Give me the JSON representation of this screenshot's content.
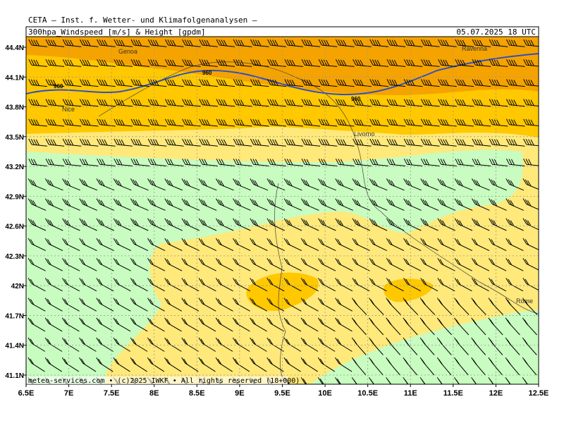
{
  "header": {
    "title": "CETA – Inst. f. Wetter- und Klimafolgenanalysen –",
    "subtitle": "300hpa_Windspeed [m/s] & Height [gpdm]",
    "datetime": "05.07.2025 18 UTC"
  },
  "axes": {
    "lat_ticks": [
      {
        "value": 44.4,
        "label": "44.4N"
      },
      {
        "value": 44.1,
        "label": "44.1N"
      },
      {
        "value": 43.8,
        "label": "43.8N"
      },
      {
        "value": 43.5,
        "label": "43.5N"
      },
      {
        "value": 43.2,
        "label": "43.2N"
      },
      {
        "value": 42.9,
        "label": "42.9N"
      },
      {
        "value": 42.6,
        "label": "42.6N"
      },
      {
        "value": 42.3,
        "label": "42.3N"
      },
      {
        "value": 42,
        "label": "42N"
      },
      {
        "value": 41.7,
        "label": "41.7N"
      },
      {
        "value": 41.4,
        "label": "41.4N"
      },
      {
        "value": 41.1,
        "label": "41.1N"
      }
    ],
    "lon_ticks": [
      {
        "value": 6.5,
        "label": "6.5E"
      },
      {
        "value": 7,
        "label": "7E"
      },
      {
        "value": 7.5,
        "label": "7.5E"
      },
      {
        "value": 8,
        "label": "8E"
      },
      {
        "value": 8.5,
        "label": "8.5E"
      },
      {
        "value": 9,
        "label": "9E"
      },
      {
        "value": 9.5,
        "label": "9.5E"
      },
      {
        "value": 10,
        "label": "10E"
      },
      {
        "value": 10.5,
        "label": "10.5E"
      },
      {
        "value": 11,
        "label": "11E"
      },
      {
        "value": 11.5,
        "label": "11.5E"
      },
      {
        "value": 12,
        "label": "12E"
      },
      {
        "value": 12.5,
        "label": "12.5E"
      }
    ]
  },
  "places": [
    "Genoa",
    "Ravenna",
    "Nice",
    "Livorno",
    "Rome"
  ],
  "contour_labels": [
    "960",
    "960",
    "960"
  ],
  "credit": "meteo-services.com • (c)2025 IWKF • All rights reserved (18+000)"
}
